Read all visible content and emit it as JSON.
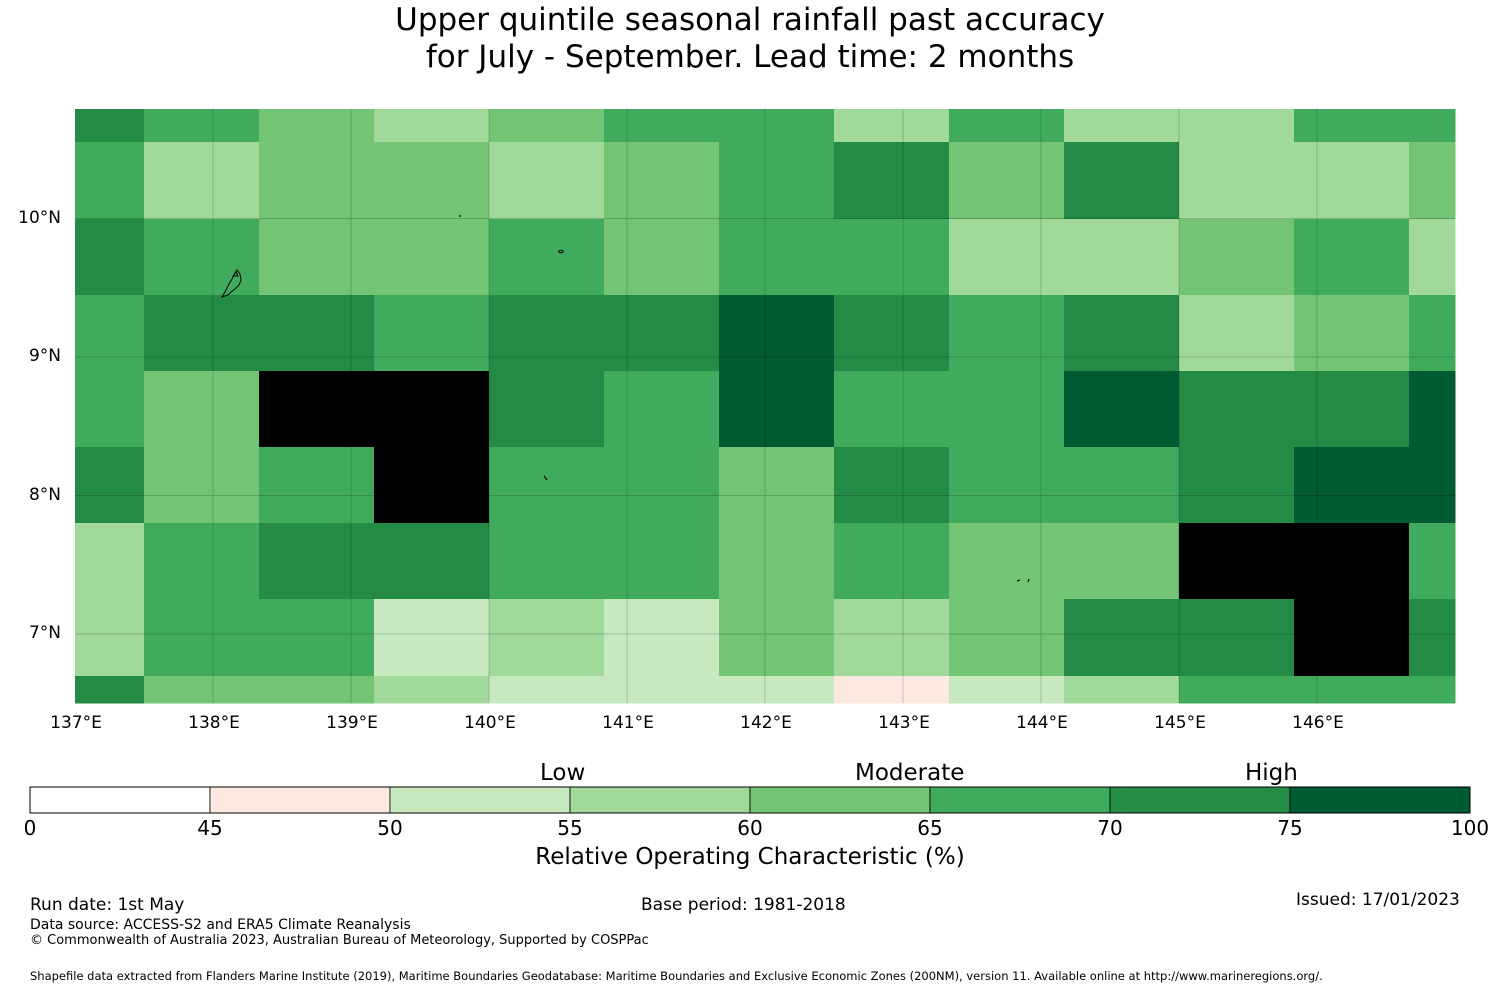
{
  "title": {
    "line1": "Upper quintile seasonal rainfall past accuracy",
    "line2": "for July - September. Lead time: 2 months"
  },
  "map": {
    "lon_labels": [
      "137°E",
      "138°E",
      "139°E",
      "140°E",
      "141°E",
      "142°E",
      "143°E",
      "144°E",
      "145°E",
      "146°E"
    ],
    "lat_labels": [
      "10°N",
      "9°N",
      "8°N",
      "7°N"
    ],
    "columns_lon_edges": [
      137.0,
      137.5,
      138.33,
      139.17,
      140.0,
      140.83,
      141.67,
      142.5,
      143.33,
      144.17,
      145.0,
      145.83,
      146.67,
      147.0
    ],
    "rows_lat_edges": [
      10.8,
      10.55,
      10.0,
      9.45,
      8.9,
      8.35,
      7.8,
      7.25,
      6.7,
      6.5
    ],
    "grid_cells_roc_bin": [
      [
        6,
        5,
        4,
        3,
        4,
        5,
        5,
        3,
        5,
        3,
        3,
        5,
        5
      ],
      [
        5,
        3,
        4,
        4,
        3,
        4,
        5,
        6,
        4,
        6,
        3,
        3,
        4
      ],
      [
        6,
        5,
        4,
        4,
        5,
        4,
        5,
        5,
        3,
        3,
        4,
        5,
        3
      ],
      [
        5,
        6,
        6,
        5,
        6,
        6,
        7,
        6,
        5,
        6,
        3,
        4,
        5
      ],
      [
        5,
        4,
        8,
        8,
        6,
        5,
        7,
        5,
        5,
        7,
        6,
        6,
        7
      ],
      [
        6,
        4,
        5,
        8,
        5,
        5,
        4,
        6,
        5,
        5,
        6,
        7,
        7
      ],
      [
        3,
        5,
        6,
        6,
        5,
        5,
        4,
        5,
        4,
        4,
        8,
        8,
        5
      ],
      [
        3,
        5,
        5,
        2,
        3,
        2,
        4,
        3,
        4,
        6,
        6,
        8,
        6
      ],
      [
        6,
        4,
        4,
        3,
        2,
        2,
        2,
        1,
        2,
        3,
        5,
        5,
        5
      ]
    ],
    "color_bins": [
      "#ffffff",
      "#fee9e0",
      "#c7e9c0",
      "#a1d99b",
      "#74c476",
      "#41ab5d",
      "#238b45",
      "#005a32"
    ]
  },
  "colorbar": {
    "category_labels": [
      "Low",
      "Moderate",
      "High"
    ],
    "tick_labels": [
      "0",
      "45",
      "50",
      "55",
      "60",
      "65",
      "70",
      "75",
      "100"
    ],
    "title": "Relative Operating Characteristic (%)"
  },
  "footer": {
    "run_date": "Run date: 1st May",
    "base_period": "Base period: 1981-2018",
    "issued": "Issued: 17/01/2023",
    "data_source": "Data source: ACCESS-S2 and ERA5 Climate Reanalysis",
    "copyright": "© Commonwealth of Australia 2023, Australian Bureau of Meteorology, Supported by COSPPac",
    "shapefile": "Shapefile data extracted from Flanders Marine Institute (2019), Maritime Boundaries Geodatabase: Maritime Boundaries and Exclusive Economic Zones (200NM), version 11. Available online at http://www.marineregions.org/."
  }
}
